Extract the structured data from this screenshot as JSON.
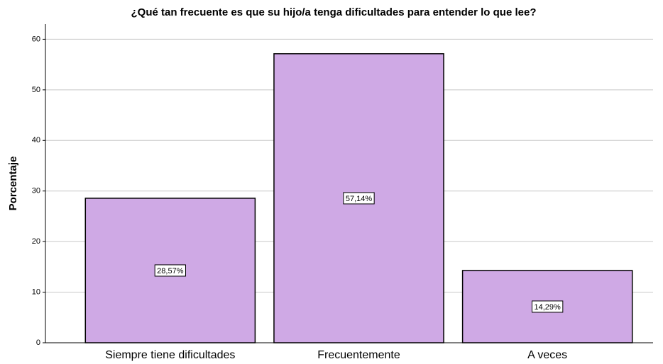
{
  "chart_data": {
    "type": "bar",
    "title": "¿Qué tan frecuente es que su hijo/a tenga dificultades para entender lo que lee?",
    "y_label": "Porcentaje",
    "categories": [
      "Siempre tiene dificultades",
      "Frecuentemente",
      "A veces"
    ],
    "values": [
      28.57,
      57.14,
      14.29
    ],
    "value_labels": [
      "28,57%",
      "57,14%",
      "14,29%"
    ],
    "color": "#cfa9e5",
    "ylim": [
      0,
      63
    ],
    "yticks": [
      0,
      10,
      20,
      30,
      40,
      50,
      60
    ],
    "grid": true
  }
}
